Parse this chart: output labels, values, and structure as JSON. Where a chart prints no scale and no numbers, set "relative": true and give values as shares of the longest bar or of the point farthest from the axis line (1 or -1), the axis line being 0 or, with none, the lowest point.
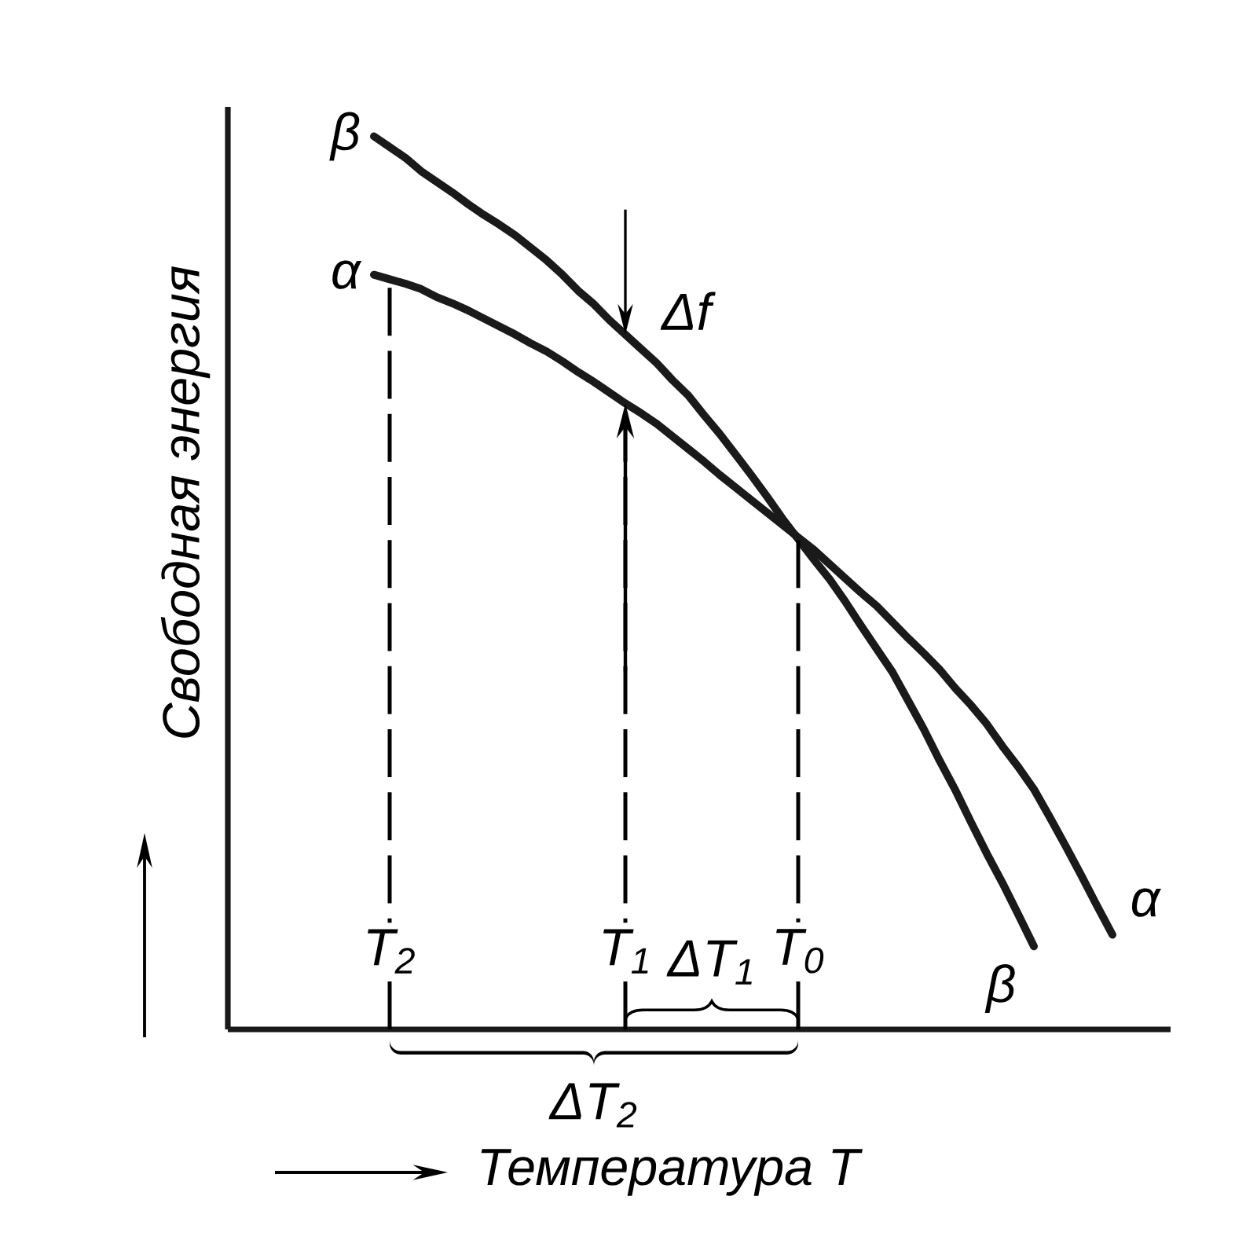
{
  "chart_data": {
    "type": "line",
    "relative": true,
    "xlabel": "Температура T",
    "ylabel": "Свободная энергия",
    "categories": [
      null,
      null,
      null,
      null,
      null,
      null,
      null,
      null,
      null,
      null,
      "T$_{2}$",
      null,
      null,
      null,
      null,
      null,
      null,
      null,
      null,
      null,
      null,
      null,
      null,
      null,
      null,
      "T$_{1}$",
      null,
      null,
      null,
      null,
      null,
      null,
      null,
      null,
      null,
      null,
      "T$_{0}$",
      null,
      null,
      null,
      null,
      null,
      null,
      null,
      null,
      null,
      null,
      null,
      null,
      null,
      null,
      null,
      null,
      null,
      null,
      null,
      null,
      null,
      null,
      null
    ],
    "series": [
      {
        "name": "β",
        "color": "#1a1a1a",
        "values": [
          null,
          null,
          null,
          null,
          null,
          null,
          null,
          null,
          null,
          1.0,
          0.988,
          0.976,
          0.961,
          0.949,
          0.937,
          0.924,
          0.912,
          0.901,
          0.889,
          0.875,
          0.861,
          0.845,
          0.827,
          0.812,
          0.794,
          0.778,
          0.762,
          0.746,
          0.727,
          0.71,
          0.688,
          0.667,
          0.644,
          0.621,
          0.597,
          0.572,
          0.549,
          0.526,
          0.504,
          0.479,
          0.452,
          0.426,
          0.4,
          0.368,
          0.336,
          0.301,
          0.268,
          0.232,
          0.197,
          0.164,
          0.129,
          0.093,
          null,
          null,
          null,
          null,
          null,
          null,
          null,
          null
        ]
      },
      {
        "name": "α",
        "color": "#1a1a1a",
        "values": [
          null,
          null,
          null,
          null,
          null,
          null,
          null,
          null,
          null,
          0.845,
          0.84,
          0.835,
          0.829,
          0.82,
          0.813,
          0.805,
          0.796,
          0.787,
          0.778,
          0.768,
          0.759,
          0.748,
          0.736,
          0.725,
          0.713,
          0.701,
          0.69,
          0.678,
          0.664,
          0.65,
          0.636,
          0.621,
          0.607,
          0.593,
          0.579,
          0.565,
          0.551,
          0.537,
          0.521,
          0.505,
          0.489,
          0.474,
          0.456,
          0.438,
          0.421,
          0.403,
          0.382,
          0.363,
          0.342,
          0.317,
          0.294,
          0.269,
          0.238,
          0.206,
          0.173,
          0.139,
          0.106,
          null,
          null,
          null
        ]
      }
    ],
    "annotations": [
      "Δf",
      "ΔT$_{1}$",
      "ΔT$_{2}$"
    ],
    "marker": "none",
    "line_style": "solid"
  }
}
